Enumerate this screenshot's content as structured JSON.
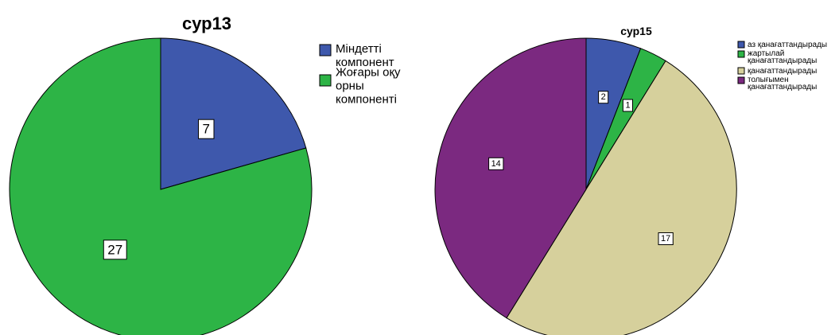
{
  "chart_data": [
    {
      "type": "pie",
      "title": "сур13",
      "legend_position": "right",
      "start": "top, clockwise",
      "categories": [
        [
          "Міндетті",
          "компонент"
        ],
        [
          "Жоғары оқу",
          "орны",
          "компоненті"
        ]
      ],
      "values": [
        7,
        27
      ],
      "colors": [
        "#3E58AC",
        "#2DB446"
      ]
    },
    {
      "type": "pie",
      "title": "сур15",
      "legend_position": "right",
      "start": "top, clockwise",
      "categories": [
        [
          "аз қанағаттандырады"
        ],
        [
          "жартылай",
          "қанағаттандырады"
        ],
        [
          "қанағаттандырады"
        ],
        [
          "толығымен",
          "қанағаттандырады"
        ]
      ],
      "values": [
        2,
        1,
        17,
        14
      ],
      "colors": [
        "#3E58AC",
        "#2DB446",
        "#D6D09C",
        "#7B2980"
      ]
    }
  ]
}
